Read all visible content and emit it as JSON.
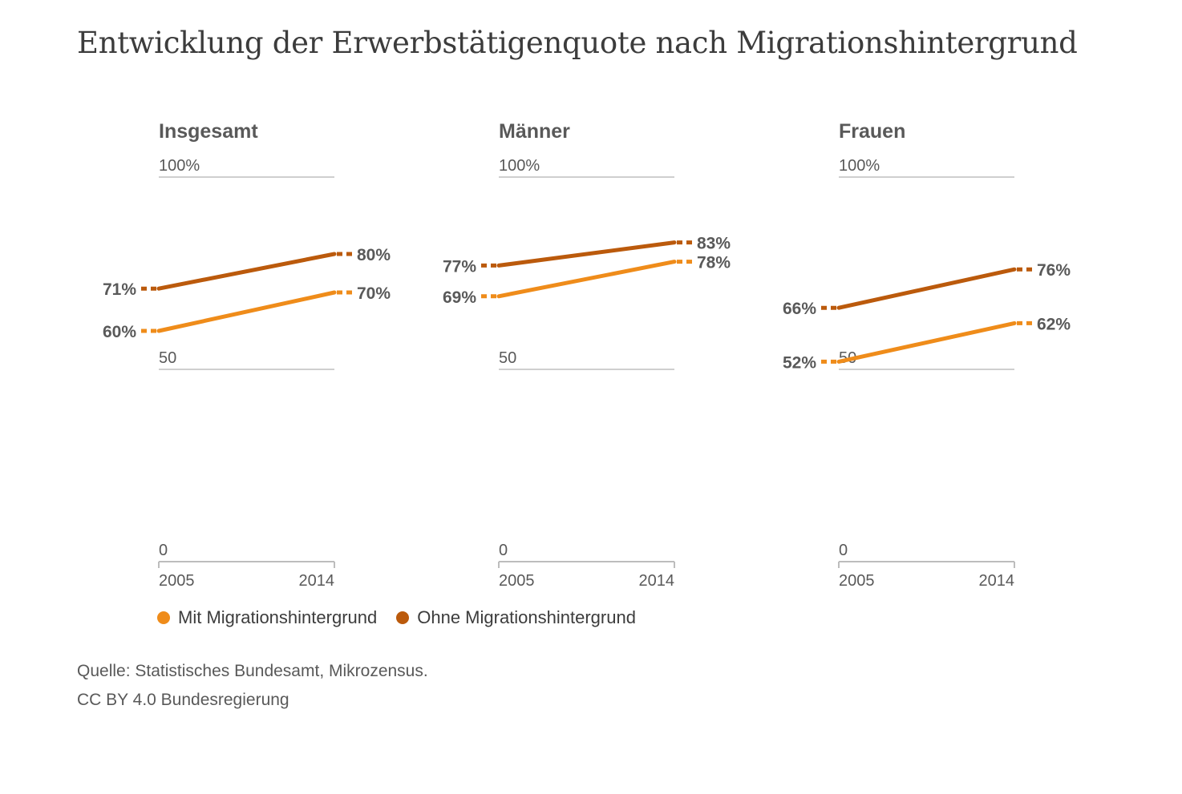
{
  "title": "Entwicklung der Erwerbstätigenquote nach Migrationshintergrund",
  "legend": {
    "mit": "Mit Migrationshintergrund",
    "ohne": "Ohne Migrationshintergrund"
  },
  "colors": {
    "mit": "#ef8c1a",
    "ohne": "#bb5a0c",
    "grid": "#cfcfcf",
    "text": "#595959"
  },
  "source": {
    "line1": "Quelle: Statistisches Bundesamt, Mikrozensus.",
    "line2": "CC BY 4.0 Bundesregierung"
  },
  "chart_data": [
    {
      "type": "line",
      "title": "Insgesamt",
      "x": [
        "2005",
        "2014"
      ],
      "yticks": [
        "0",
        "50",
        "100%"
      ],
      "ylim": [
        0,
        100
      ],
      "series": [
        {
          "name": "Mit Migrationshintergrund",
          "values": [
            60,
            70
          ],
          "labels": [
            "60%",
            "70%"
          ]
        },
        {
          "name": "Ohne Migrationshintergrund",
          "values": [
            71,
            80
          ],
          "labels": [
            "71%",
            "80%"
          ]
        }
      ]
    },
    {
      "type": "line",
      "title": "Männer",
      "x": [
        "2005",
        "2014"
      ],
      "yticks": [
        "0",
        "50",
        "100%"
      ],
      "ylim": [
        0,
        100
      ],
      "series": [
        {
          "name": "Mit Migrationshintergrund",
          "values": [
            69,
            78
          ],
          "labels": [
            "69%",
            "78%"
          ]
        },
        {
          "name": "Ohne Migrationshintergrund",
          "values": [
            77,
            83
          ],
          "labels": [
            "77%",
            "83%"
          ]
        }
      ]
    },
    {
      "type": "line",
      "title": "Frauen",
      "x": [
        "2005",
        "2014"
      ],
      "yticks": [
        "0",
        "50",
        "100%"
      ],
      "ylim": [
        0,
        100
      ],
      "series": [
        {
          "name": "Mit Migrationshintergrund",
          "values": [
            52,
            62
          ],
          "labels": [
            "52%",
            "62%"
          ]
        },
        {
          "name": "Ohne Migrationshintergrund",
          "values": [
            66,
            76
          ],
          "labels": [
            "66%",
            "76%"
          ]
        }
      ]
    }
  ]
}
